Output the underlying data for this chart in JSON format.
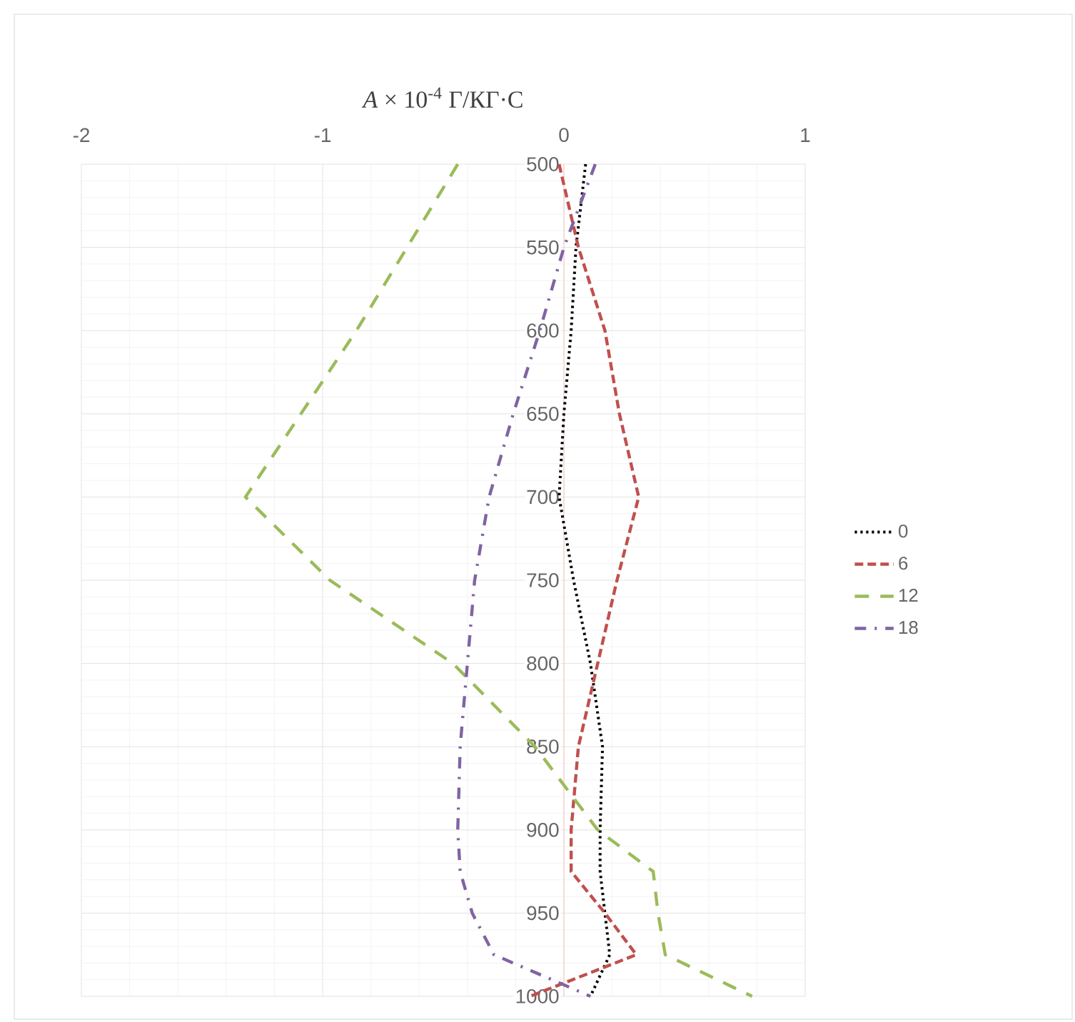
{
  "chart_data": {
    "type": "line",
    "title": "*A* × 10$^{-4}$ Г/КГ·С",
    "x": [
      500,
      550,
      600,
      650,
      700,
      750,
      800,
      850,
      900,
      925,
      950,
      975,
      1000
    ],
    "orientation": "horizontal",
    "series": [
      {
        "name": "0",
        "color": "#000000",
        "line_style": "dotted",
        "values": [
          0.09,
          0.05,
          0.03,
          0.0,
          -0.02,
          0.04,
          0.11,
          0.16,
          0.15,
          0.15,
          0.17,
          0.19,
          0.11
        ]
      },
      {
        "name": "6",
        "color": "#c0504d",
        "line_style": "dashed",
        "values": [
          -0.02,
          0.06,
          0.17,
          0.23,
          0.31,
          0.22,
          0.14,
          0.06,
          0.03,
          0.03,
          0.17,
          0.3,
          -0.14
        ]
      },
      {
        "name": "12",
        "color": "#9bbb59",
        "line_style": "long dashed",
        "values": [
          -0.44,
          -0.65,
          -0.86,
          -1.09,
          -1.32,
          -0.97,
          -0.46,
          -0.12,
          0.14,
          0.37,
          0.39,
          0.42,
          0.78
        ]
      },
      {
        "name": "18",
        "color": "#8064a2",
        "line_style": "dash dot",
        "values": [
          0.13,
          0.0,
          -0.1,
          -0.21,
          -0.31,
          -0.37,
          -0.4,
          -0.43,
          -0.44,
          -0.43,
          -0.38,
          -0.29,
          0.11
        ]
      }
    ],
    "xlim": [
      -2,
      1
    ],
    "xticks": [
      -2,
      -1,
      0,
      1
    ],
    "ylim": [
      1000,
      500
    ],
    "yticks": [
      500,
      550,
      600,
      650,
      700,
      750,
      800,
      850,
      900,
      950,
      1000
    ],
    "grid": true,
    "legend": "right",
    "marker": "none"
  }
}
